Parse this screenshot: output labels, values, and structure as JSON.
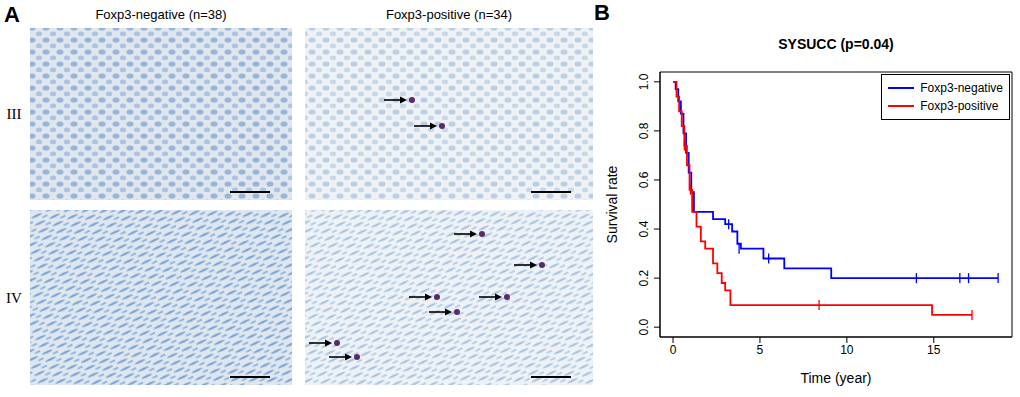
{
  "panel_a": {
    "label": "A",
    "columns": [
      "Foxp3-negative (n=38)",
      "Foxp3-positive (n=34)"
    ],
    "rows": [
      "III",
      "IV"
    ]
  },
  "chart_data": {
    "type": "line",
    "panel_label": "B",
    "title": "SYSUCC (p=0.04)",
    "x_label": "Time (year)",
    "y_label": "Survival rate",
    "xlim": [
      -0.75,
      19.5
    ],
    "xticks": [
      0,
      5,
      10,
      15
    ],
    "ylim": [
      -0.04,
      1.04
    ],
    "yticks": [
      {
        "value": 0,
        "label": "0.0"
      },
      0.2,
      0.4,
      0.6,
      0.8,
      {
        "value": 1,
        "label": "1.0"
      }
    ],
    "line_style": "step",
    "legend": "upper right",
    "series": [
      {
        "name": "Foxp3-negative",
        "color": "#0000ff",
        "x": [
          0,
          0.15,
          0.3,
          0.45,
          0.6,
          0.75,
          0.9,
          1.05,
          1.2,
          2.3,
          3.0,
          3.4,
          3.7,
          3.9,
          5.2,
          6.4,
          9.1,
          18.7
        ],
        "values": [
          1.0,
          0.97,
          0.92,
          0.87,
          0.79,
          0.71,
          0.63,
          0.55,
          0.47,
          0.44,
          0.42,
          0.39,
          0.34,
          0.32,
          0.28,
          0.24,
          0.2,
          0.2
        ],
        "censored": {
          "x": [
            3.2,
            3.8,
            5.5,
            14.0,
            16.5,
            17.0,
            18.7
          ],
          "values": [
            0.42,
            0.32,
            0.28,
            0.2,
            0.2,
            0.2,
            0.2
          ]
        }
      },
      {
        "name": "Foxp3-positive",
        "color": "#ff0000",
        "x": [
          0,
          0.2,
          0.35,
          0.5,
          0.65,
          0.8,
          0.95,
          1.1,
          1.35,
          1.6,
          1.85,
          2.3,
          2.55,
          2.8,
          3.0,
          3.3,
          14.9,
          17.2
        ],
        "values": [
          1.0,
          0.94,
          0.88,
          0.82,
          0.74,
          0.66,
          0.56,
          0.47,
          0.41,
          0.35,
          0.32,
          0.26,
          0.22,
          0.18,
          0.15,
          0.09,
          0.05,
          0.05
        ],
        "censored": {
          "x": [
            0.65,
            1.0,
            8.4,
            17.2
          ],
          "values": [
            0.74,
            0.56,
            0.09,
            0.05
          ]
        }
      }
    ]
  }
}
